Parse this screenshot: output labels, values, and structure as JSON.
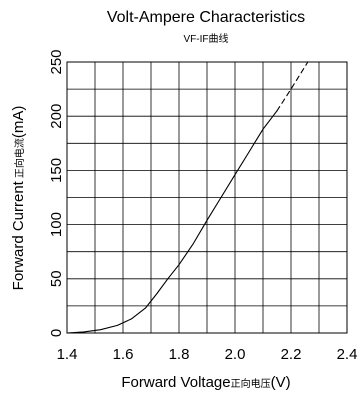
{
  "chart_data": {
    "type": "line",
    "title": "Volt-Ampere Characteristics",
    "subtitle": "VF-IF曲线",
    "xlabel": "Forward Voltage",
    "xlabel_suffix": "正向电压",
    "xlabel_unit": "(V)",
    "ylabel": "Forward Current",
    "ylabel_suffix": "正向电流",
    "ylabel_unit": "(mA)",
    "xlim": [
      1.4,
      2.4
    ],
    "ylim": [
      0,
      250
    ],
    "x_ticks": [
      "1.4",
      "1.6",
      "1.8",
      "2.0",
      "2.2",
      "2.4"
    ],
    "y_ticks": [
      "0",
      "50",
      "100",
      "150",
      "200",
      "250"
    ],
    "grid": true,
    "series": [
      {
        "style": "solid",
        "points": [
          [
            1.4,
            0
          ],
          [
            1.46,
            1
          ],
          [
            1.52,
            3
          ],
          [
            1.58,
            7
          ],
          [
            1.63,
            13
          ],
          [
            1.68,
            23
          ],
          [
            1.72,
            36
          ],
          [
            1.76,
            50
          ],
          [
            1.8,
            63
          ],
          [
            1.85,
            82
          ],
          [
            1.9,
            104
          ],
          [
            1.95,
            125
          ],
          [
            2.0,
            146
          ],
          [
            2.05,
            167
          ],
          [
            2.1,
            188
          ],
          [
            2.15,
            205
          ]
        ]
      },
      {
        "style": "dashed",
        "points": [
          [
            2.15,
            205
          ],
          [
            2.2,
            225
          ],
          [
            2.26,
            250
          ]
        ]
      }
    ]
  }
}
